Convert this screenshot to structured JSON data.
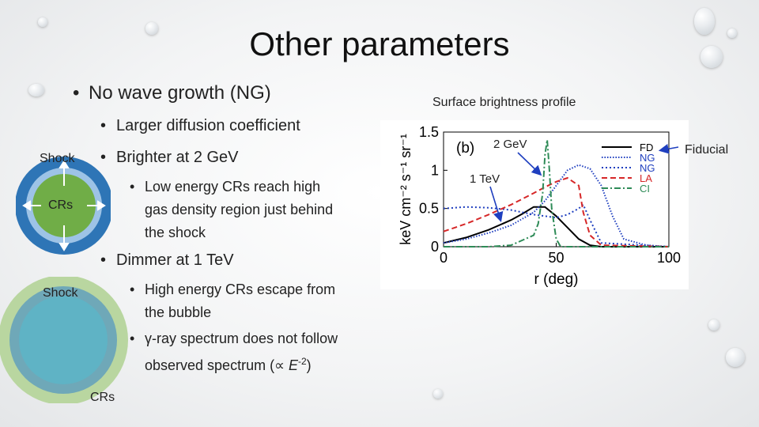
{
  "slide": {
    "title": "Other parameters",
    "bullets": {
      "ng": "No wave growth (NG)",
      "diffusion": "Larger diffusion coefficient",
      "brighter": "Brighter at 2 GeV",
      "brighter_sub_line1": "Low energy CRs reach high",
      "brighter_sub_line2": "gas density region just behind",
      "brighter_sub_line3": "the shock",
      "dimmer": "Dimmer at 1 TeV",
      "dimmer_sub1_line1": "High energy CRs escape from",
      "dimmer_sub1_line2": "the bubble",
      "dimmer_sub2_line1": "γ-ray spectrum does not follow",
      "dimmer_sub2_line2_prefix": "observed spectrum (∝ ",
      "dimmer_sub2_E": "E",
      "dimmer_sub2_exp": "-2",
      "dimmer_sub2_suffix": ")",
      "bullet_char": "•"
    },
    "diagram_top": {
      "shock_label": "Shock",
      "crs_label": "CRs"
    },
    "diagram_bottom": {
      "shock_label": "Shock",
      "crs_label": "CRs"
    },
    "figure": {
      "caption": "Surface brightness profile",
      "note_2gev": "2 GeV",
      "note_1tev": "1 TeV",
      "note_fiducial": "Fiducial"
    },
    "colors": {
      "ring_outer": "#2e75b6",
      "ring_inner": "#9dc3e6",
      "core_top": "#70ad47",
      "outer_bottom": "#b9d6a0",
      "mid_bottom": "#6fa8b8",
      "core_bottom": "#5fb3c5"
    }
  },
  "chart_data": {
    "type": "line",
    "panel_label": "(b)",
    "xlabel": "r (deg)",
    "ylabel": "keV cm⁻² s⁻¹ sr⁻¹",
    "xlim": [
      0,
      100
    ],
    "ylim": [
      0,
      1.5
    ],
    "xticks": [
      "0",
      "50",
      "100"
    ],
    "yticks": [
      "0",
      "0.5",
      "1",
      "1.5"
    ],
    "legend_position": "top-right",
    "series": [
      {
        "name": "FD",
        "color": "#000000",
        "dash": "solid",
        "x": [
          0,
          10,
          20,
          30,
          35,
          40,
          45,
          50,
          55,
          60,
          65,
          70,
          100
        ],
        "y": [
          0.05,
          0.12,
          0.22,
          0.35,
          0.43,
          0.52,
          0.52,
          0.4,
          0.25,
          0.1,
          0.02,
          0,
          0
        ]
      },
      {
        "name": "NG",
        "color": "#1f3fbf",
        "dash": "dot-fine",
        "x": [
          0,
          10,
          20,
          30,
          40,
          45,
          50,
          55,
          60,
          65,
          70,
          75,
          80,
          90,
          100
        ],
        "y": [
          0.05,
          0.1,
          0.18,
          0.28,
          0.45,
          0.6,
          0.8,
          1.0,
          1.07,
          1.02,
          0.8,
          0.4,
          0.1,
          0.02,
          0
        ]
      },
      {
        "name": "NG",
        "color": "#1f3fbf",
        "dash": "dot",
        "x": [
          0,
          10,
          20,
          30,
          40,
          45,
          50,
          55,
          60,
          62,
          65,
          70,
          100
        ],
        "y": [
          0.5,
          0.52,
          0.51,
          0.48,
          0.42,
          0.4,
          0.38,
          0.42,
          0.5,
          0.55,
          0.35,
          0.05,
          0
        ]
      },
      {
        "name": "LA",
        "color": "#d62728",
        "dash": "dash",
        "x": [
          0,
          10,
          20,
          30,
          40,
          45,
          50,
          55,
          60,
          62,
          65,
          70,
          100
        ],
        "y": [
          0.2,
          0.3,
          0.42,
          0.55,
          0.7,
          0.78,
          0.85,
          0.9,
          0.8,
          0.45,
          0.15,
          0.02,
          0
        ]
      },
      {
        "name": "CI",
        "color": "#2e8b57",
        "dash": "dashdot",
        "x": [
          0,
          20,
          30,
          40,
          42,
          44,
          45,
          46,
          47,
          48,
          50,
          52,
          100
        ],
        "y": [
          0,
          0,
          0.02,
          0.15,
          0.3,
          0.7,
          1.2,
          1.4,
          1.0,
          0.5,
          0.1,
          0,
          0
        ]
      }
    ]
  }
}
